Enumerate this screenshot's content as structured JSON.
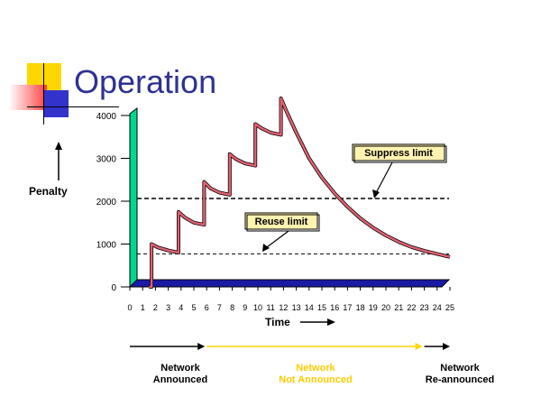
{
  "slide": {
    "title": "Operation",
    "colors": {
      "title": "#2e3192",
      "logo_yellow": "#ffd700",
      "logo_red": "#ff4040",
      "logo_blue": "#3333cc"
    }
  },
  "chart_data": {
    "type": "line",
    "ylabel": "Penalty",
    "xlabel": "Time",
    "x_ticks": [
      0,
      1,
      2,
      3,
      4,
      5,
      6,
      7,
      8,
      9,
      10,
      11,
      12,
      13,
      14,
      15,
      16,
      17,
      18,
      19,
      20,
      21,
      22,
      23,
      24,
      25
    ],
    "y_ticks": [
      0,
      1000,
      2000,
      3000,
      4000
    ],
    "xlim": [
      0,
      25
    ],
    "ylim": [
      0,
      4000
    ],
    "series": [
      {
        "color": "#e06070",
        "points": [
          [
            1.5,
            0
          ],
          [
            1.7,
            0
          ],
          [
            1.7,
            1000
          ],
          [
            2.2,
            920
          ],
          [
            3,
            850
          ],
          [
            3.8,
            800
          ],
          [
            3.8,
            1750
          ],
          [
            4.3,
            1620
          ],
          [
            5,
            1500
          ],
          [
            5.8,
            1450
          ],
          [
            5.8,
            2450
          ],
          [
            6.3,
            2300
          ],
          [
            7,
            2200
          ],
          [
            7.8,
            2150
          ],
          [
            7.8,
            3100
          ],
          [
            8.3,
            2980
          ],
          [
            9,
            2880
          ],
          [
            9.8,
            2830
          ],
          [
            9.8,
            3800
          ],
          [
            10.3,
            3700
          ],
          [
            11,
            3600
          ],
          [
            11.8,
            3550
          ],
          [
            11.8,
            4400
          ],
          [
            12.3,
            4050
          ],
          [
            13,
            3600
          ],
          [
            14,
            3000
          ],
          [
            15,
            2550
          ],
          [
            16,
            2180
          ],
          [
            17,
            1870
          ],
          [
            18,
            1600
          ],
          [
            19,
            1380
          ],
          [
            20,
            1200
          ],
          [
            21,
            1050
          ],
          [
            22,
            930
          ],
          [
            23,
            840
          ],
          [
            24,
            770
          ],
          [
            25,
            700
          ]
        ]
      }
    ],
    "thresholds": [
      {
        "label": "Suppress limit",
        "value": 2000
      },
      {
        "label": "Reuse limit",
        "value": 750
      }
    ],
    "phases": [
      {
        "label": "Network\nAnnounced",
        "from": 0,
        "to": 6,
        "color": "#000000"
      },
      {
        "label": "Network\nNot Announced",
        "from": 6,
        "to": 23,
        "color": "#ffd700"
      },
      {
        "label": "Network\nRe-announced",
        "from": 23,
        "to": 25,
        "color": "#000000"
      }
    ]
  }
}
